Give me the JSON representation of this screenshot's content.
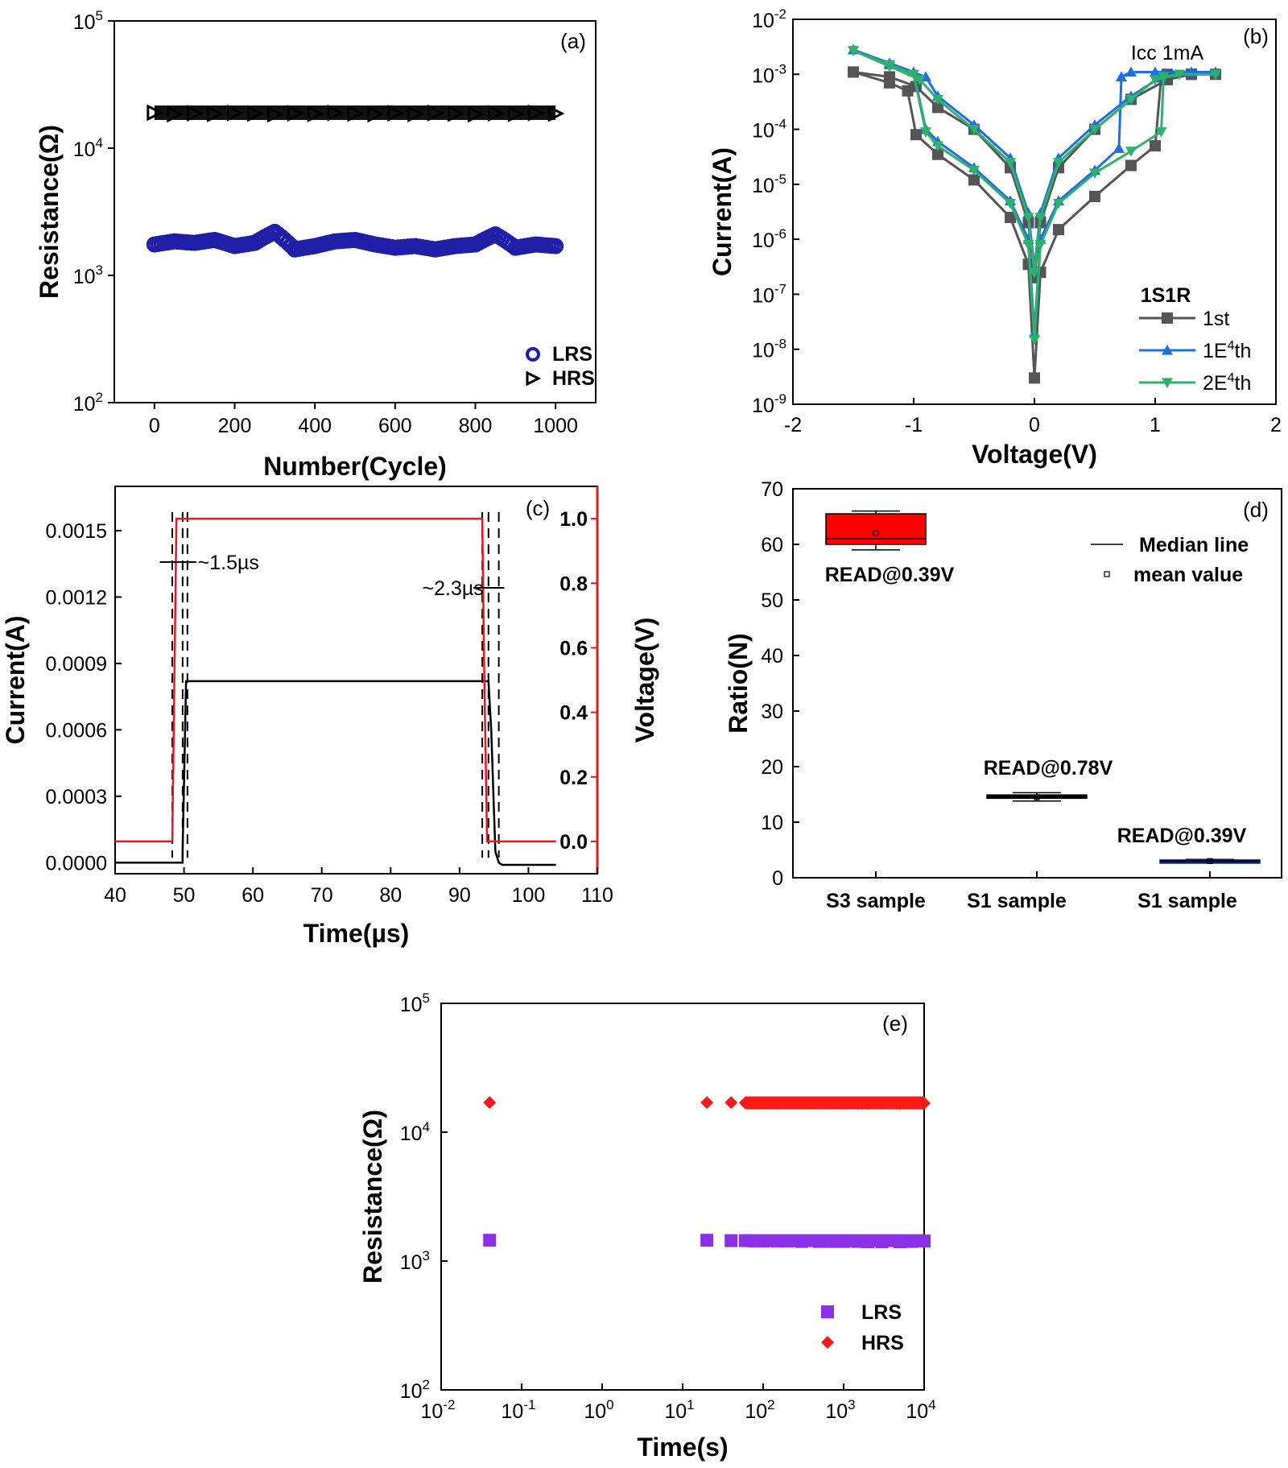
{
  "chart_data": [
    {
      "id": "a",
      "type": "scatter",
      "panel_label": "(a)",
      "xlabel": "Number(Cycle)",
      "ylabel": "Resistance(Ω)",
      "xlim": [
        -100,
        1100
      ],
      "ylim": [
        100,
        100000
      ],
      "yscale": "log",
      "xticks": [
        0,
        200,
        400,
        600,
        800,
        1000
      ],
      "xticklabels": [
        "0",
        "200",
        "400",
        "600",
        "800",
        "1000"
      ],
      "yticks": [
        100,
        1000,
        10000,
        100000
      ],
      "yticklabels": [
        [
          "10",
          "2"
        ],
        [
          "10",
          "3"
        ],
        [
          "10",
          "4"
        ],
        [
          "10",
          "5"
        ]
      ],
      "legend_position": "bottom-right",
      "series": [
        {
          "name": "LRS",
          "marker": "open-circle",
          "color": "#1f1fa8",
          "x": [
            0,
            50,
            100,
            150,
            200,
            250,
            300,
            350,
            400,
            450,
            500,
            550,
            600,
            650,
            700,
            750,
            800,
            850,
            900,
            950,
            1000
          ],
          "y": [
            1750,
            1850,
            1800,
            1900,
            1700,
            1800,
            2200,
            1600,
            1700,
            1850,
            1900,
            1750,
            1650,
            1700,
            1600,
            1700,
            1750,
            2100,
            1650,
            1750,
            1700
          ]
        },
        {
          "name": "HRS",
          "marker": "open-triangle-right",
          "color": "#000000",
          "x": [
            0,
            50,
            100,
            150,
            200,
            250,
            300,
            350,
            400,
            450,
            500,
            550,
            600,
            650,
            700,
            750,
            800,
            850,
            900,
            950,
            1000
          ],
          "y": [
            19000,
            18500,
            18800,
            18600,
            18900,
            18700,
            18500,
            18800,
            18600,
            18900,
            18700,
            18500,
            18800,
            18600,
            18900,
            18700,
            18500,
            18800,
            18600,
            18900,
            18700
          ]
        }
      ]
    },
    {
      "id": "b",
      "type": "line",
      "panel_label": "(b)",
      "annotation": "Icc 1mA",
      "xlabel": "Voltage(V)",
      "ylabel": "Current(A)",
      "xlim": [
        -2,
        2
      ],
      "ylim": [
        1e-09,
        0.01
      ],
      "yscale": "log",
      "xticks": [
        -2,
        -1,
        0,
        1,
        2
      ],
      "xticklabels": [
        "-2",
        "-1",
        "0",
        "1",
        "2"
      ],
      "yticks": [
        1e-09,
        1e-08,
        1e-07,
        1e-06,
        1e-05,
        0.0001,
        0.001,
        0.01
      ],
      "yticklabels": [
        [
          "10",
          "-9"
        ],
        [
          "10",
          "-8"
        ],
        [
          "10",
          "-7"
        ],
        [
          "10",
          "-6"
        ],
        [
          "10",
          "-5"
        ],
        [
          "10",
          "-4"
        ],
        [
          "10",
          "-3"
        ],
        [
          "10",
          "-2"
        ]
      ],
      "legend_title": "1S1R",
      "legend_position": "bottom-right",
      "series": [
        {
          "name": "1st",
          "name_parts": [
            "1st",
            "",
            ""
          ],
          "marker": "square",
          "color": "#555555",
          "x": [
            -1.5,
            -1.2,
            -1.05,
            -0.98,
            -0.8,
            -0.5,
            -0.2,
            -0.05,
            0,
            0.05,
            0.2,
            0.5,
            0.8,
            1.0,
            1.05,
            1.1,
            1.3,
            1.5,
            1.3,
            1.1,
            0.8,
            0.5,
            0.2,
            0.05,
            0,
            -0.05,
            -0.2,
            -0.5,
            -0.8,
            -0.98,
            -1.2,
            -1.5
          ],
          "y": [
            0.0011,
            0.0007,
            0.0005,
            8e-05,
            3.5e-05,
            1.2e-05,
            2.5e-06,
            3.5e-07,
            3e-09,
            2.5e-07,
            1.5e-06,
            6e-06,
            2.2e-05,
            5e-05,
            0.0009,
            0.001,
            0.001,
            0.001,
            0.001,
            0.0008,
            0.00035,
            0.0001,
            2e-05,
            2e-06,
            2e-07,
            2e-06,
            2e-05,
            0.0001,
            0.00025,
            0.0006,
            0.0009,
            0.0011
          ]
        },
        {
          "name": "1E4th",
          "name_parts": [
            "1E",
            "4",
            "th"
          ],
          "marker": "triangle-up",
          "color": "#1f6fe0",
          "x": [
            -1.5,
            -1.2,
            -1.0,
            -0.9,
            -0.8,
            -0.5,
            -0.2,
            -0.05,
            0,
            0.05,
            0.2,
            0.5,
            0.7,
            0.72,
            0.8,
            1.0,
            1.3,
            1.5,
            1.3,
            1.05,
            0.8,
            0.5,
            0.2,
            0.05,
            0,
            -0.05,
            -0.2,
            -0.5,
            -0.8,
            -0.9,
            -1.2,
            -1.5
          ],
          "y": [
            0.0028,
            0.0016,
            0.0011,
            0.0001,
            6e-05,
            2e-05,
            5e-06,
            1e-06,
            2e-08,
            1e-06,
            5e-06,
            1.8e-05,
            4.5e-05,
            0.0009,
            0.0011,
            0.0011,
            0.0011,
            0.0011,
            0.0011,
            0.0009,
            0.0004,
            0.00012,
            3e-05,
            3e-06,
            3e-07,
            3e-06,
            3e-05,
            0.00012,
            0.0004,
            0.0009,
            0.0015,
            0.0028
          ]
        },
        {
          "name": "2E4th",
          "name_parts": [
            "2E",
            "4",
            "th"
          ],
          "marker": "triangle-down",
          "color": "#2cb26b",
          "x": [
            -1.5,
            -1.2,
            -1.0,
            -0.9,
            -0.8,
            -0.5,
            -0.2,
            -0.05,
            0,
            0.05,
            0.2,
            0.5,
            0.8,
            1.05,
            1.07,
            1.2,
            1.5,
            1.2,
            1.0,
            0.8,
            0.5,
            0.2,
            0.05,
            0,
            -0.05,
            -0.2,
            -0.5,
            -0.8,
            -0.95,
            -1.2,
            -1.5
          ],
          "y": [
            0.0027,
            0.0015,
            0.001,
            9e-05,
            5e-05,
            1.8e-05,
            4.5e-06,
            8e-07,
            1.5e-08,
            8e-07,
            4.5e-06,
            1.6e-05,
            4e-05,
            9e-05,
            0.0009,
            0.001,
            0.001,
            0.001,
            0.0008,
            0.00035,
            0.0001,
            2.5e-05,
            2.5e-06,
            2.5e-07,
            2.5e-06,
            2.5e-05,
            0.0001,
            0.00035,
            0.0008,
            0.0014,
            0.0027
          ]
        }
      ]
    },
    {
      "id": "c",
      "type": "line",
      "panel_label": "(c)",
      "xlabel": "Time(µs)",
      "ylabel": "Current(A)",
      "y2label": "Voltage(V)",
      "xlim": [
        40,
        110
      ],
      "ylim": [
        -5e-05,
        0.0017
      ],
      "y2lim": [
        -0.1,
        1.1
      ],
      "xticks": [
        40,
        50,
        60,
        70,
        80,
        90,
        100,
        110
      ],
      "xticklabels": [
        "40",
        "50",
        "60",
        "70",
        "80",
        "90",
        "100",
        "110"
      ],
      "yticks": [
        0,
        0.0003,
        0.0006,
        0.0009,
        0.0012,
        0.0015
      ],
      "yticklabels": [
        "0.0000",
        "0.0003",
        "0.0006",
        "0.0009",
        "0.0012",
        "0.0015"
      ],
      "y2ticks": [
        0,
        0.2,
        0.4,
        0.6,
        0.8,
        1.0
      ],
      "y2ticklabels": [
        "0.0",
        "0.2",
        "0.4",
        "0.6",
        "0.8",
        "1.0"
      ],
      "annotations": [
        "~1.5µs",
        "~2.3µs"
      ],
      "dashed_lines_x": [
        48.3,
        49.8,
        50.5,
        93.3,
        94.2,
        95.7
      ],
      "series": [
        {
          "name": "Current",
          "axis": "left",
          "color": "#000000",
          "x": [
            40,
            49.8,
            49.8,
            50.3,
            50.8,
            94.2,
            94.6,
            95.2,
            95.7,
            96.2,
            104
          ],
          "y": [
            0,
            0,
            5e-05,
            0.00082,
            0.00082,
            0.00082,
            0.0006,
            5e-05,
            0,
            -1e-05,
            -1e-05
          ]
        },
        {
          "name": "Voltage",
          "axis": "right",
          "color": "#e8171d",
          "x": [
            40,
            48.3,
            48.6,
            48.9,
            93.3,
            93.6,
            94.0,
            104
          ],
          "y": [
            0,
            0,
            0.5,
            1.0,
            1.0,
            0.5,
            0,
            0
          ]
        }
      ]
    },
    {
      "id": "d",
      "type": "box",
      "panel_label": "(d)",
      "ylabel": "Ratio(N)",
      "ylim": [
        0,
        70
      ],
      "yticks": [
        0,
        10,
        20,
        30,
        40,
        50,
        60,
        70
      ],
      "yticklabels": [
        "0",
        "10",
        "20",
        "30",
        "40",
        "50",
        "60",
        "70"
      ],
      "categories": [
        "S3 sample",
        "S1 sample",
        "S1 sample"
      ],
      "legend_position": "top-right",
      "legend": [
        "Median line",
        "mean value"
      ],
      "boxes": [
        {
          "label": "READ@0.39V",
          "min": 59,
          "q1": 60,
          "median": 61,
          "mean": 62,
          "q3": 65.5,
          "max": 66,
          "color": "#ff0000"
        },
        {
          "label": "READ@0.78V",
          "min": 13.8,
          "q1": 14.3,
          "median": 14.6,
          "mean": 14.5,
          "q3": 14.9,
          "max": 15.3,
          "color": "#000000"
        },
        {
          "label": "READ@0.39V",
          "min": 2.7,
          "q1": 2.8,
          "median": 3.0,
          "mean": 3.0,
          "q3": 3.2,
          "max": 3.3,
          "color": "#0b1f6b"
        }
      ]
    },
    {
      "id": "e",
      "type": "scatter",
      "panel_label": "(e)",
      "xlabel": "Time(s)",
      "ylabel": "Resistance(Ω)",
      "xlim": [
        0.01,
        10000
      ],
      "ylim": [
        100,
        100000
      ],
      "xscale": "log",
      "yscale": "log",
      "xticks": [
        0.01,
        0.1,
        1,
        10,
        100,
        1000,
        10000
      ],
      "xticklabels": [
        [
          "10",
          "-2"
        ],
        [
          "10",
          "-1"
        ],
        [
          "10",
          "0"
        ],
        [
          "10",
          "1"
        ],
        [
          "10",
          "2"
        ],
        [
          "10",
          "3"
        ],
        [
          "10",
          "4"
        ]
      ],
      "yticks": [
        100,
        1000,
        10000,
        100000
      ],
      "yticklabels": [
        [
          "10",
          "2"
        ],
        [
          "10",
          "3"
        ],
        [
          "10",
          "4"
        ],
        [
          "10",
          "5"
        ]
      ],
      "legend_position": "bottom-right",
      "series": [
        {
          "name": "LRS",
          "marker": "square",
          "color": "#8c2fe8",
          "x": [
            0.04,
            20,
            40,
            60,
            80,
            100,
            150,
            200,
            300,
            500,
            700,
            1000,
            1500,
            2000,
            3000,
            5000,
            7000,
            10000
          ],
          "y": [
            1450,
            1450,
            1440,
            1440,
            1430,
            1430,
            1430,
            1430,
            1420,
            1420,
            1420,
            1420,
            1420,
            1410,
            1410,
            1410,
            1420,
            1430
          ]
        },
        {
          "name": "HRS",
          "marker": "diamond",
          "color": "#ff1a1a",
          "x": [
            0.04,
            20,
            40,
            60,
            80,
            100,
            150,
            200,
            300,
            500,
            700,
            1000,
            1500,
            2000,
            3000,
            5000,
            7000,
            10000
          ],
          "y": [
            17000,
            17000,
            17000,
            16900,
            16900,
            16900,
            16800,
            16800,
            16800,
            16800,
            16700,
            16700,
            16700,
            16700,
            16700,
            16700,
            16800,
            16800
          ]
        }
      ]
    }
  ]
}
